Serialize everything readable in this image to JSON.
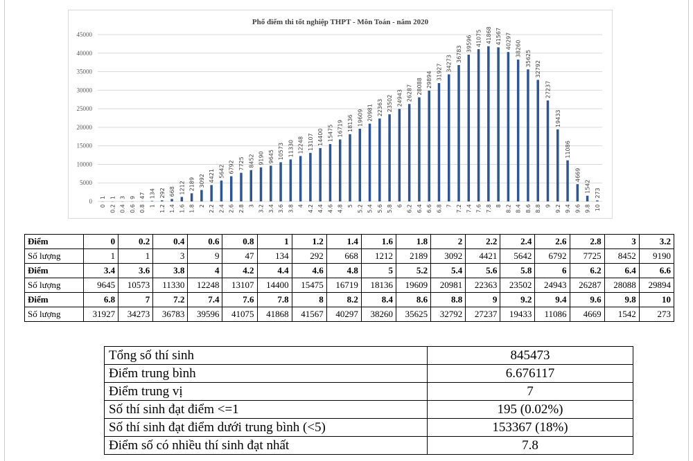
{
  "chart_data": {
    "type": "bar",
    "title": "Phổ điểm thi tốt nghiệp THPT - Môn Toán - năm 2020",
    "xlabel": "",
    "ylabel": "",
    "ylim": [
      0,
      45000
    ],
    "yticks": [
      0,
      5000,
      10000,
      15000,
      20000,
      25000,
      30000,
      35000,
      40000,
      45000
    ],
    "grid": true,
    "bar_color": "#2e5597",
    "categories": [
      "0",
      "0.2",
      "0.4",
      "0.6",
      "0.8",
      "1",
      "1.2",
      "1.4",
      "1.6",
      "1.8",
      "2",
      "2.2",
      "2.4",
      "2.6",
      "2.8",
      "3",
      "3.2",
      "3.4",
      "3.6",
      "3.8",
      "4",
      "4.2",
      "4.4",
      "4.6",
      "4.8",
      "5",
      "5.2",
      "5.4",
      "5.6",
      "5.8",
      "6",
      "6.2",
      "6.4",
      "6.6",
      "6.8",
      "7",
      "7.2",
      "7.4",
      "7.6",
      "7.8",
      "8",
      "8.2",
      "8.4",
      "8.6",
      "8.8",
      "9",
      "9.2",
      "9.4",
      "9.6",
      "9.8",
      "10"
    ],
    "values": [
      1,
      1,
      3,
      9,
      47,
      134,
      292,
      668,
      1212,
      2189,
      3092,
      4421,
      5642,
      6792,
      7725,
      8452,
      9190,
      9645,
      10573,
      11330,
      12248,
      13107,
      14400,
      15475,
      16719,
      18136,
      19609,
      20981,
      22363,
      23502,
      24943,
      26287,
      28088,
      29894,
      31927,
      34273,
      36783,
      39596,
      41075,
      41868,
      41567,
      40297,
      38260,
      35625,
      32792,
      27237,
      19433,
      11086,
      4669,
      1542,
      273
    ]
  },
  "score_table": {
    "score_label": "Điểm",
    "count_label": "Số lượng",
    "blocks": [
      {
        "scores": [
          "0",
          "0.2",
          "0.4",
          "0.6",
          "0.8",
          "1",
          "1.2",
          "1.4",
          "1.6",
          "1.8",
          "2",
          "2.2",
          "2.4",
          "2.6",
          "2.8",
          "3",
          "3.2"
        ],
        "counts": [
          "1",
          "1",
          "3",
          "9",
          "47",
          "134",
          "292",
          "668",
          "1212",
          "2189",
          "3092",
          "4421",
          "5642",
          "6792",
          "7725",
          "8452",
          "9190"
        ]
      },
      {
        "scores": [
          "3.4",
          "3.6",
          "3.8",
          "4",
          "4.2",
          "4.4",
          "4.6",
          "4.8",
          "5",
          "5.2",
          "5.4",
          "5.6",
          "5.8",
          "6",
          "6.2",
          "6.4",
          "6.6"
        ],
        "counts": [
          "9645",
          "10573",
          "11330",
          "12248",
          "13107",
          "14400",
          "15475",
          "16719",
          "18136",
          "19609",
          "20981",
          "22363",
          "23502",
          "24943",
          "26287",
          "28088",
          "29894"
        ]
      },
      {
        "scores": [
          "6.8",
          "7",
          "7.2",
          "7.4",
          "7.6",
          "7.8",
          "8",
          "8.2",
          "8.4",
          "8.6",
          "8.8",
          "9",
          "9.2",
          "9.4",
          "9.6",
          "9.8",
          "10"
        ],
        "counts": [
          "31927",
          "34273",
          "36783",
          "39596",
          "41075",
          "41868",
          "41567",
          "40297",
          "38260",
          "35625",
          "32792",
          "27237",
          "19433",
          "11086",
          "4669",
          "1542",
          "273"
        ]
      }
    ]
  },
  "summary": [
    {
      "label": "Tổng số thí sinh",
      "value": "845473"
    },
    {
      "label": "Điểm trung bình",
      "value": "6.676117"
    },
    {
      "label": "Điểm trung vị",
      "value": "7"
    },
    {
      "label": "Số thí sinh đạt điểm <=1",
      "value": "195 (0.02%)"
    },
    {
      "label": "Số thí sinh đạt điểm dưới trung bình (<5)",
      "value": "153367 (18%)"
    },
    {
      "label": "Điểm số có nhiều thí sinh đạt nhất",
      "value": "7.8"
    }
  ]
}
